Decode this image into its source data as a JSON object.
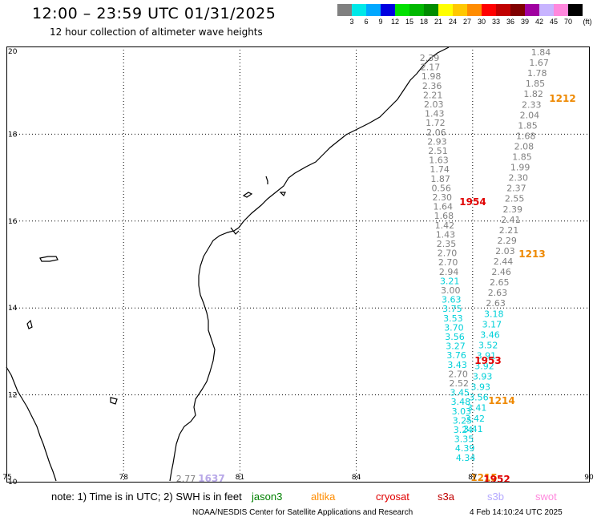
{
  "header": {
    "title": "12:00 – 23:59 UTC 01/31/2025",
    "subtitle": "12 hour collection of altimeter wave heights"
  },
  "legend": {
    "unit": "(ft)",
    "bins": [
      {
        "label": "3",
        "color": "#808080"
      },
      {
        "label": "6",
        "color": "#00e8e8"
      },
      {
        "label": "9",
        "color": "#00a8ff"
      },
      {
        "label": "12",
        "color": "#0000e0"
      },
      {
        "label": "15",
        "color": "#00e000"
      },
      {
        "label": "18",
        "color": "#00b800"
      },
      {
        "label": "21",
        "color": "#008c00"
      },
      {
        "label": "24",
        "color": "#ffff00"
      },
      {
        "label": "27",
        "color": "#ffc800"
      },
      {
        "label": "30",
        "color": "#ff8c00"
      },
      {
        "label": "33",
        "color": "#ff0000"
      },
      {
        "label": "36",
        "color": "#c00000"
      },
      {
        "label": "39",
        "color": "#800000"
      },
      {
        "label": "42",
        "color": "#a000a0"
      },
      {
        "label": "45",
        "color": "#c8b4ff"
      },
      {
        "label": "70",
        "color": "#ff88dd"
      },
      {
        "label": "",
        "color": "#000000"
      }
    ]
  },
  "axes": {
    "lon_ticks": [
      "75",
      "78",
      "81",
      "84",
      "87",
      "90"
    ],
    "lat_ticks": [
      "20",
      "18",
      "16",
      "14",
      "12",
      "10"
    ]
  },
  "tracks": {
    "colors": {
      "gray": "#808080",
      "cyan": "#00d0d8",
      "orange": "#ee8800",
      "red": "#e00000",
      "lavender": "#b8a8e8"
    },
    "inner_pass": [
      "2.39",
      "2.17",
      "1.98",
      "2.36",
      "2.21",
      "2.03",
      "1.43",
      "1.72",
      "2.06",
      "2.93",
      "2.51",
      "1.63",
      "1.74",
      "1.87",
      "0.56",
      "2.30",
      "1.64",
      "1.68",
      "1.42",
      "1.43",
      "2.35",
      "2.70",
      "2.70",
      "2.94",
      "3.21",
      "3.00",
      "3.63",
      "3.75",
      "3.53",
      "3.70",
      "3.56",
      "3.27",
      "3.76",
      "3.43",
      "2.70",
      "2.52",
      "3.45",
      "3.48",
      "3.03",
      "3.25",
      "3.24",
      "3.35",
      "4.39",
      "4.34"
    ],
    "outer_pass": [
      "1.84",
      "1.67",
      "1.78",
      "1.85",
      "1.82",
      "2.33",
      "2.04",
      "1.85",
      "1.68",
      "2.08",
      "1.85",
      "1.99",
      "2.30",
      "2.37",
      "2.55",
      "2.39",
      "2.41",
      "2.21",
      "2.29",
      "2.03",
      "2.44",
      "2.46",
      "2.65",
      "2.63",
      "2.63",
      "3.18",
      "3.17",
      "3.46",
      "3.52",
      "3.91",
      "3.92",
      "3.93",
      "3.93",
      "3.56",
      "3.41",
      "3.42",
      "3.41"
    ],
    "time_labels": [
      {
        "text": "1212",
        "color_key": "orange"
      },
      {
        "text": "1954",
        "color_key": "red"
      },
      {
        "text": "1213",
        "color_key": "orange"
      },
      {
        "text": "1953",
        "color_key": "red"
      },
      {
        "text": "1214",
        "color_key": "orange"
      },
      {
        "text": "1215",
        "color_key": "orange"
      },
      {
        "text": "1952",
        "color_key": "red"
      },
      {
        "text": "1637",
        "color_key": "lavender"
      }
    ],
    "extra_value": "2.77"
  },
  "footer": {
    "note_prefix": "note: 1) Time is in UTC; 2) SWH is in feet",
    "satellites": [
      {
        "name": "jason3",
        "color": "#008000"
      },
      {
        "name": "altika",
        "color": "#ff8c00"
      },
      {
        "name": "cryosat",
        "color": "#e00000"
      },
      {
        "name": "s3a",
        "color": "#c00000"
      },
      {
        "name": "s3b",
        "color": "#b4a8ff"
      },
      {
        "name": "swot",
        "color": "#ff88dd"
      }
    ],
    "credit": "NOAA/NESDIS Center for Satellite Applications and Research",
    "stamp": "4 Feb 14:10:24 UTC 2025"
  }
}
